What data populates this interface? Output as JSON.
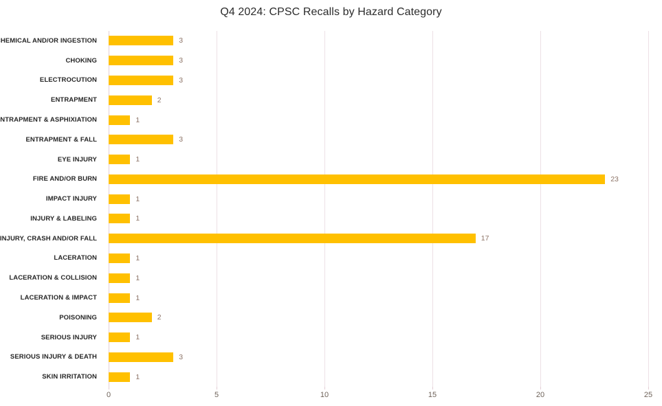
{
  "chart_data": {
    "type": "bar",
    "orientation": "horizontal",
    "title": "Q4 2024: CPSC Recalls by Hazard Category",
    "categories": [
      "CHEMICAL AND/OR INGESTION",
      "CHOKING",
      "ELECTROCUTION",
      "ENTRAPMENT",
      "ENTRAPMENT & ASPHIXIATION",
      "ENTRAPMENT & FALL",
      "EYE INJURY",
      "FIRE AND/OR BURN",
      "IMPACT INJURY",
      "INJURY & LABELING",
      "INJURY, CRASH AND/OR FALL",
      "LACERATION",
      "LACERATION & COLLISION",
      "LACERATION & IMPACT",
      "POISONING",
      "SERIOUS INJURY",
      "SERIOUS INJURY & DEATH",
      "SKIN IRRITATION"
    ],
    "values": [
      3,
      3,
      3,
      2,
      1,
      3,
      1,
      23,
      1,
      1,
      17,
      1,
      1,
      1,
      2,
      1,
      3,
      1
    ],
    "xlabel": "",
    "ylabel": "",
    "xlim": [
      0,
      25
    ],
    "x_ticks": [
      0,
      5,
      10,
      15,
      20,
      25
    ],
    "grid": "vertical-only",
    "legend": "none",
    "data_labels": "outside-end",
    "colors": {
      "bar": "#FFC000",
      "data_label": "#8C7366",
      "gridline": "#EDE0E5",
      "axis_line": "#E2CDD4",
      "tick_label": "#6E6259",
      "category_label": "#262626",
      "title": "#2B2B2B"
    }
  }
}
